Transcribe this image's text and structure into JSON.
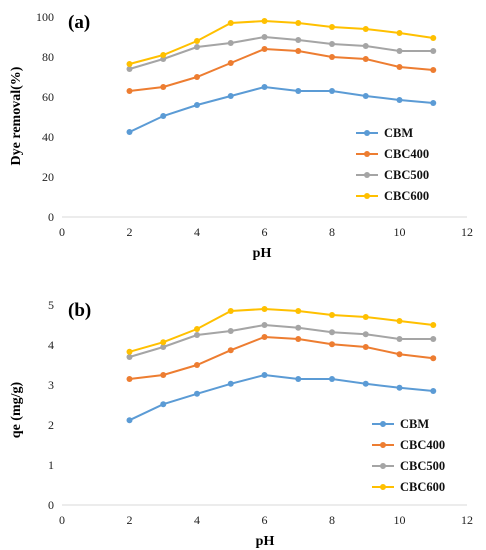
{
  "chart_data": [
    {
      "type": "line",
      "panel_label": "(a)",
      "xlabel": "pH",
      "ylabel": "Dye removal(%)",
      "xlim": [
        0,
        12
      ],
      "ylim": [
        0,
        100
      ],
      "xticks": [
        "0",
        "2",
        "4",
        "6",
        "8",
        "10",
        "12"
      ],
      "yticks": [
        "0",
        "20",
        "40",
        "60",
        "80",
        "100"
      ],
      "grid": false,
      "legend_position": "bottom-right",
      "x": [
        2,
        3,
        4,
        5,
        6,
        7,
        8,
        9,
        10,
        11
      ],
      "series": [
        {
          "name": "CBM",
          "color": "#5b9bd5",
          "values": [
            42.5,
            50.5,
            56,
            60.5,
            65,
            63,
            63,
            60.5,
            58.5,
            57
          ]
        },
        {
          "name": "CBC400",
          "color": "#ed7d31",
          "values": [
            63,
            65,
            70,
            77,
            84,
            83,
            80,
            79,
            75,
            73.5
          ]
        },
        {
          "name": "CBC500",
          "color": "#a5a5a5",
          "values": [
            74,
            79,
            85,
            87,
            90,
            88.5,
            86.5,
            85.5,
            83,
            83
          ]
        },
        {
          "name": "CBC600",
          "color": "#ffc000",
          "values": [
            76.5,
            81,
            88,
            97,
            98,
            97,
            95,
            94,
            92,
            89.5
          ]
        }
      ]
    },
    {
      "type": "line",
      "panel_label": "(b)",
      "xlabel": "pH",
      "ylabel": "qe (mg/g)",
      "xlim": [
        0,
        12
      ],
      "ylim": [
        0,
        5
      ],
      "xticks": [
        "0",
        "2",
        "4",
        "6",
        "8",
        "10",
        "12"
      ],
      "yticks": [
        "0",
        "1",
        "2",
        "3",
        "4",
        "5"
      ],
      "grid": false,
      "legend_position": "bottom-right",
      "x": [
        2,
        3,
        4,
        5,
        6,
        7,
        8,
        9,
        10,
        11
      ],
      "series": [
        {
          "name": "CBM",
          "color": "#5b9bd5",
          "values": [
            2.12,
            2.52,
            2.78,
            3.03,
            3.25,
            3.15,
            3.15,
            3.03,
            2.93,
            2.85
          ]
        },
        {
          "name": "CBC400",
          "color": "#ed7d31",
          "values": [
            3.15,
            3.25,
            3.5,
            3.87,
            4.2,
            4.15,
            4.02,
            3.95,
            3.77,
            3.67
          ]
        },
        {
          "name": "CBC500",
          "color": "#a5a5a5",
          "values": [
            3.7,
            3.95,
            4.25,
            4.35,
            4.5,
            4.43,
            4.32,
            4.27,
            4.15,
            4.15
          ]
        },
        {
          "name": "CBC600",
          "color": "#ffc000",
          "values": [
            3.83,
            4.07,
            4.4,
            4.85,
            4.9,
            4.85,
            4.75,
            4.7,
            4.6,
            4.5
          ]
        }
      ]
    }
  ]
}
